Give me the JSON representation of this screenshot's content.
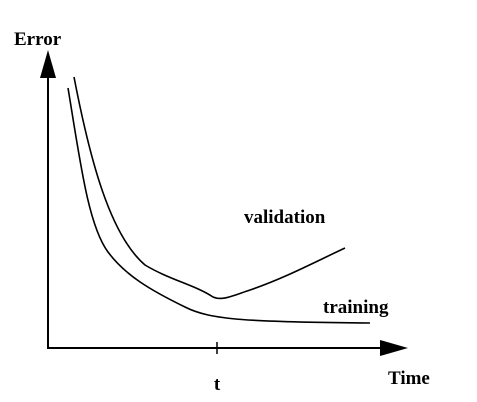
{
  "axes": {
    "y_label": "Error",
    "x_label": "Time",
    "x_mark": "t"
  },
  "curves": {
    "validation": "validation",
    "training": "training"
  }
}
